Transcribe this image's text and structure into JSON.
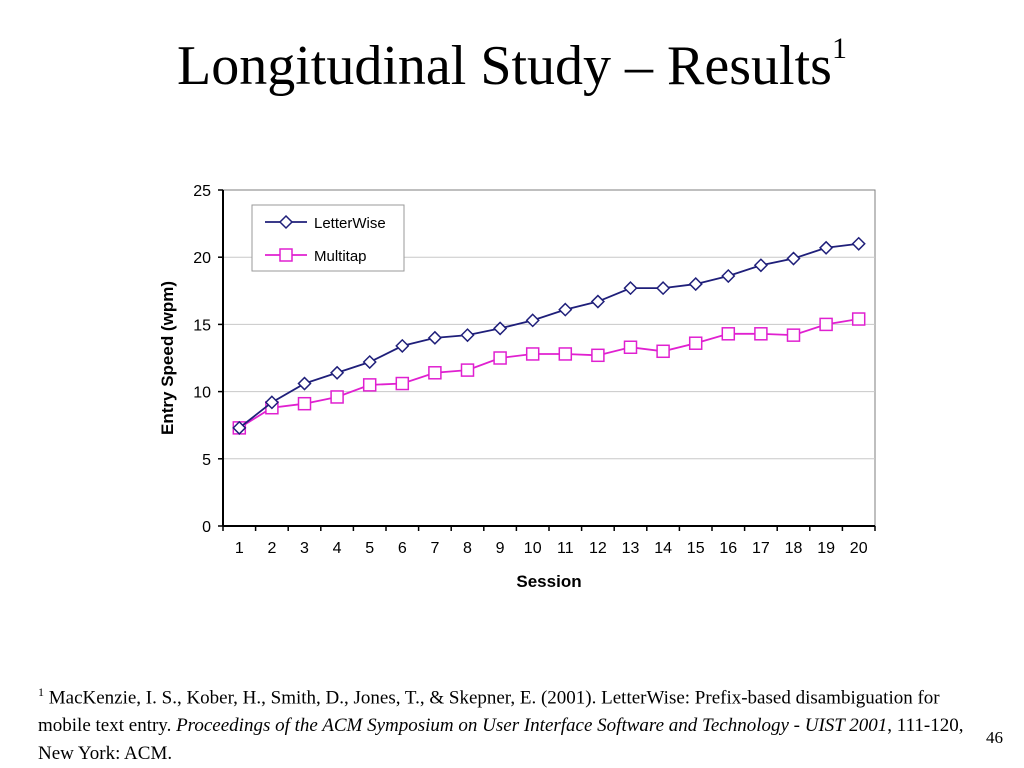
{
  "slide": {
    "title": "Longitudinal Study – Results",
    "title_marker": "1",
    "page_number": "46"
  },
  "footnote": {
    "marker": "1",
    "authors": "MacKenzie, I. S., Kober, H., Smith, D., Jones, T., & Skepner, E. (2001). LetterWise: Prefix-based disambiguation for mobile text entry.",
    "venue": "Proceedings of the ACM Symposium on User Interface Software and Technology - UIST 2001",
    "details": ", 111-120, New York: ACM."
  },
  "chart_data": {
    "type": "line",
    "xlabel": "Session",
    "ylabel": "Entry Speed (wpm)",
    "ylim": [
      0,
      25
    ],
    "yticks": [
      0,
      5,
      10,
      15,
      20,
      25
    ],
    "categories": [
      "1",
      "2",
      "3",
      "4",
      "5",
      "6",
      "7",
      "8",
      "9",
      "10",
      "11",
      "12",
      "13",
      "14",
      "15",
      "16",
      "17",
      "18",
      "19",
      "20"
    ],
    "grid": "horizontal",
    "legend": "top-left",
    "series": [
      {
        "name": "LetterWise",
        "color": "#1f1f7a",
        "marker": "diamond",
        "values": [
          7.3,
          9.2,
          10.6,
          11.4,
          12.2,
          13.4,
          14.0,
          14.2,
          14.7,
          15.3,
          16.1,
          16.7,
          17.7,
          17.7,
          18.0,
          18.6,
          19.4,
          19.9,
          20.7,
          21.0
        ]
      },
      {
        "name": "Multitap",
        "color": "#e020d0",
        "marker": "square",
        "values": [
          7.3,
          8.8,
          9.1,
          9.6,
          10.5,
          10.6,
          11.4,
          11.6,
          12.5,
          12.8,
          12.8,
          12.7,
          13.3,
          13.0,
          13.6,
          14.3,
          14.3,
          14.2,
          15.0,
          15.4
        ]
      }
    ]
  }
}
